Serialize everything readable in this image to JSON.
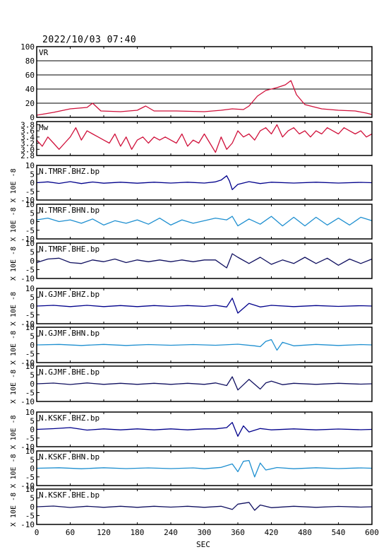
{
  "header": {
    "timestamp": "2022/10/03  07:40"
  },
  "x_axis": {
    "label": "SEC",
    "range": [
      0,
      600
    ],
    "ticks": [
      0,
      60,
      120,
      180,
      240,
      300,
      360,
      420,
      480,
      540,
      600
    ]
  },
  "colors": {
    "vr_mw": "#d0103a",
    "bhz": "#00008b",
    "bhn": "#1e8fd0",
    "bhe": "#101060"
  },
  "chart_data": [
    {
      "type": "line",
      "title": "VR",
      "ylim": [
        0,
        100
      ],
      "yticks": [
        0,
        20,
        40,
        60,
        80,
        100
      ],
      "grid": true,
      "series": [
        {
          "x": [
            0,
            30,
            60,
            90,
            100,
            115,
            150,
            180,
            195,
            210,
            250,
            300,
            330,
            350,
            370,
            380,
            395,
            410,
            430,
            445,
            455,
            465,
            480,
            510,
            540,
            570,
            590,
            600
          ],
          "y": [
            3,
            7,
            12,
            14,
            20,
            9,
            8,
            10,
            16,
            9,
            9,
            8,
            10,
            12,
            11,
            16,
            30,
            38,
            42,
            46,
            52,
            32,
            18,
            12,
            10,
            9,
            6,
            4
          ]
        }
      ]
    },
    {
      "type": "line",
      "title": "Mw",
      "ylim": [
        2.8,
        3.9
      ],
      "yticks": [
        2.8,
        3.0,
        3.2,
        3.4,
        3.6,
        3.8
      ],
      "grid": false,
      "series": [
        {
          "x": [
            0,
            10,
            20,
            30,
            40,
            50,
            60,
            70,
            80,
            90,
            100,
            110,
            120,
            130,
            140,
            150,
            160,
            170,
            180,
            190,
            200,
            210,
            220,
            230,
            240,
            250,
            260,
            270,
            280,
            290,
            300,
            310,
            320,
            330,
            340,
            350,
            360,
            370,
            380,
            390,
            400,
            410,
            420,
            430,
            440,
            450,
            460,
            470,
            480,
            490,
            500,
            510,
            520,
            530,
            540,
            550,
            560,
            570,
            580,
            590,
            600
          ],
          "y": [
            3.3,
            3.1,
            3.4,
            3.2,
            3.0,
            3.2,
            3.4,
            3.7,
            3.3,
            3.6,
            3.5,
            3.4,
            3.3,
            3.2,
            3.5,
            3.1,
            3.4,
            3.0,
            3.3,
            3.4,
            3.2,
            3.4,
            3.3,
            3.4,
            3.3,
            3.2,
            3.5,
            3.1,
            3.3,
            3.2,
            3.5,
            3.2,
            2.9,
            3.4,
            3.0,
            3.2,
            3.6,
            3.4,
            3.5,
            3.3,
            3.6,
            3.7,
            3.5,
            3.8,
            3.4,
            3.6,
            3.7,
            3.5,
            3.6,
            3.4,
            3.6,
            3.5,
            3.7,
            3.6,
            3.5,
            3.7,
            3.6,
            3.5,
            3.6,
            3.4,
            3.5
          ]
        }
      ]
    },
    {
      "type": "line",
      "title": "N.TMRF.BHZ.bp",
      "color_key": "bhz",
      "ylim": [
        -10,
        10
      ],
      "ylabel": "X 10E -8",
      "series": [
        {
          "x": [
            0,
            20,
            40,
            60,
            80,
            100,
            120,
            150,
            180,
            210,
            240,
            270,
            300,
            320,
            330,
            340,
            345,
            350,
            360,
            380,
            400,
            420,
            460,
            500,
            540,
            580,
            600
          ],
          "y": [
            0,
            0.5,
            -0.4,
            0.6,
            -0.5,
            0.4,
            -0.3,
            0.3,
            -0.3,
            0.3,
            -0.2,
            0.3,
            -0.2,
            0.5,
            1.5,
            4,
            1,
            -4,
            -1,
            0.6,
            -0.5,
            0.3,
            -0.2,
            0.3,
            -0.2,
            0.2,
            0
          ]
        }
      ]
    },
    {
      "type": "line",
      "title": "N.TMRF.BHN.bp",
      "color_key": "bhn",
      "ylim": [
        -10,
        10
      ],
      "ylabel": "X 10E -8",
      "series": [
        {
          "x": [
            0,
            20,
            40,
            60,
            80,
            100,
            120,
            140,
            160,
            180,
            200,
            220,
            240,
            260,
            280,
            300,
            320,
            340,
            350,
            360,
            380,
            400,
            420,
            440,
            460,
            480,
            500,
            520,
            540,
            560,
            580,
            600
          ],
          "y": [
            1,
            2,
            0,
            1,
            -1,
            1.5,
            -2,
            0.5,
            -1,
            1,
            -1.5,
            2,
            -2,
            1,
            -1,
            0.5,
            2,
            1,
            3,
            -2.5,
            1.5,
            -1.5,
            3,
            -2.5,
            2.5,
            -2.5,
            2.5,
            -2,
            2,
            -2,
            2.5,
            0.5
          ]
        }
      ]
    },
    {
      "type": "line",
      "title": "N.TMRF.BHE.bp",
      "color_key": "bhe",
      "ylim": [
        -10,
        10
      ],
      "ylabel": "X 10E -8",
      "series": [
        {
          "x": [
            0,
            20,
            40,
            60,
            80,
            100,
            120,
            140,
            160,
            180,
            200,
            220,
            240,
            260,
            280,
            300,
            320,
            340,
            350,
            360,
            380,
            400,
            420,
            440,
            460,
            480,
            500,
            520,
            540,
            560,
            580,
            600
          ],
          "y": [
            -1,
            1,
            1.5,
            -1,
            -1.5,
            0.5,
            -0.5,
            1,
            -1,
            0.5,
            -0.5,
            0.5,
            -0.5,
            0.5,
            -0.5,
            0.5,
            0.5,
            -4,
            4,
            2,
            -1.5,
            2,
            -2,
            0.5,
            -1.5,
            2,
            -1.5,
            1.5,
            -2.5,
            1,
            -1.5,
            1
          ]
        }
      ]
    },
    {
      "type": "line",
      "title": "N.GJMF.BHZ.bp",
      "color_key": "bhz",
      "ylim": [
        -10,
        10
      ],
      "ylabel": "X 10E -8",
      "series": [
        {
          "x": [
            0,
            30,
            60,
            90,
            120,
            150,
            180,
            210,
            240,
            270,
            300,
            320,
            340,
            350,
            360,
            380,
            400,
            420,
            460,
            500,
            540,
            580,
            600
          ],
          "y": [
            0,
            0.4,
            -0.3,
            0.4,
            -0.3,
            0.3,
            -0.3,
            0.3,
            -0.2,
            0.3,
            -0.2,
            0.4,
            -0.5,
            4.5,
            -4,
            1.5,
            -0.5,
            0.4,
            -0.3,
            0.3,
            -0.2,
            0.2,
            0
          ]
        }
      ]
    },
    {
      "type": "line",
      "title": "N.GJMF.BHN.bp",
      "color_key": "bhn",
      "ylim": [
        -10,
        10
      ],
      "ylabel": "X 10E -8",
      "series": [
        {
          "x": [
            0,
            40,
            80,
            120,
            160,
            200,
            240,
            280,
            320,
            360,
            390,
            400,
            410,
            420,
            430,
            440,
            460,
            500,
            540,
            580,
            600
          ],
          "y": [
            0,
            0.3,
            -0.3,
            0.3,
            -0.3,
            0.2,
            -0.2,
            0.2,
            -0.2,
            0.4,
            -0.5,
            -1,
            2,
            3,
            -3,
            1.5,
            -0.5,
            0.3,
            -0.3,
            0.2,
            0
          ]
        }
      ]
    },
    {
      "type": "line",
      "title": "N.GJMF.BHE.bp",
      "color_key": "bhe",
      "ylim": [
        -10,
        10
      ],
      "ylabel": "X 10E -8",
      "series": [
        {
          "x": [
            0,
            30,
            60,
            90,
            120,
            150,
            180,
            210,
            240,
            270,
            300,
            320,
            340,
            350,
            360,
            380,
            400,
            410,
            420,
            440,
            460,
            500,
            540,
            580,
            600
          ],
          "y": [
            0,
            0.4,
            -0.4,
            0.5,
            -0.3,
            0.3,
            -0.3,
            0.3,
            -0.3,
            0.3,
            -0.3,
            0.5,
            -1,
            4,
            -3.5,
            2.5,
            -3,
            0.5,
            1.5,
            -0.5,
            0.3,
            -0.3,
            0.3,
            -0.2,
            0
          ]
        }
      ]
    },
    {
      "type": "line",
      "title": "N.KSKF.BHZ.bp",
      "color_key": "bhz",
      "ylim": [
        -10,
        10
      ],
      "ylabel": "X 10E -8",
      "series": [
        {
          "x": [
            0,
            30,
            60,
            90,
            120,
            150,
            180,
            210,
            240,
            270,
            300,
            320,
            340,
            350,
            360,
            370,
            380,
            400,
            420,
            460,
            500,
            540,
            580,
            600
          ],
          "y": [
            0,
            0.4,
            1,
            -0.4,
            0.3,
            -0.3,
            0.3,
            -0.3,
            0.3,
            -0.3,
            0.3,
            0.3,
            1,
            4,
            -4,
            2,
            -1.5,
            0.5,
            -0.3,
            0.3,
            -0.3,
            0.2,
            -0.2,
            0
          ]
        }
      ]
    },
    {
      "type": "line",
      "title": "N.KSKF.BHN.bp",
      "color_key": "bhn",
      "ylim": [
        -10,
        10
      ],
      "ylabel": "X 10E -8",
      "series": [
        {
          "x": [
            0,
            40,
            80,
            120,
            160,
            200,
            240,
            280,
            300,
            330,
            350,
            360,
            370,
            380,
            390,
            400,
            410,
            430,
            460,
            500,
            540,
            580,
            600
          ],
          "y": [
            0,
            0.3,
            -0.3,
            0.3,
            -0.2,
            0.2,
            -0.2,
            0.2,
            -0.3,
            0.5,
            2.5,
            -2,
            4,
            4.5,
            -5,
            3,
            -1,
            0.4,
            -0.3,
            0.3,
            -0.2,
            0.2,
            0
          ]
        }
      ]
    },
    {
      "type": "line",
      "title": "N.KSKF.BHE.bp",
      "color_key": "bhe",
      "ylim": [
        -10,
        10
      ],
      "ylabel": "X 10E -8",
      "series": [
        {
          "x": [
            0,
            30,
            60,
            90,
            120,
            150,
            180,
            210,
            240,
            270,
            300,
            330,
            350,
            360,
            380,
            390,
            400,
            420,
            460,
            500,
            540,
            580,
            600
          ],
          "y": [
            0,
            0.4,
            -0.4,
            0.3,
            -0.3,
            0.3,
            -0.3,
            0.3,
            -0.2,
            0.3,
            -0.3,
            0.3,
            -1.5,
            1.5,
            2.5,
            -2,
            1,
            -0.5,
            0.3,
            -0.3,
            0.2,
            -0.2,
            0
          ]
        }
      ]
    }
  ]
}
